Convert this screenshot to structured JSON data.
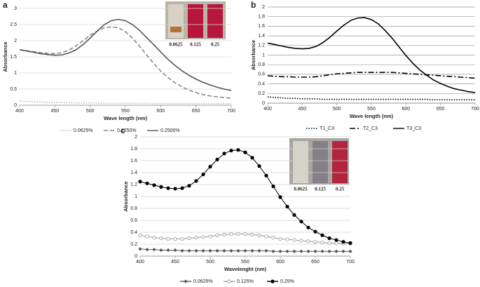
{
  "chart_data": [
    {
      "type": "line",
      "panel_label": "a",
      "x_label": "Wave length (nm)",
      "y_label": "Absorbance",
      "inset_labels": [
        "0.0625",
        "0.125",
        "0.25"
      ],
      "x": [
        400,
        410,
        420,
        430,
        440,
        450,
        460,
        470,
        480,
        490,
        500,
        510,
        520,
        530,
        540,
        550,
        560,
        570,
        580,
        590,
        600,
        610,
        620,
        630,
        640,
        650,
        660,
        670,
        680,
        690,
        700
      ],
      "xlim": [
        400,
        700
      ],
      "xticks": [
        400,
        450,
        500,
        550,
        600,
        650,
        700
      ],
      "ylim": [
        0,
        3
      ],
      "yticks": [
        0,
        0.5,
        1,
        1.5,
        2,
        2.5,
        3
      ],
      "grid": true,
      "series": [
        {
          "name": "0.0625%",
          "color": "#bbbbbb",
          "line_style": "dotted",
          "values": [
            0.13,
            0.12,
            0.11,
            0.1,
            0.09,
            0.09,
            0.08,
            0.08,
            0.07,
            0.07,
            0.07,
            0.07,
            0.06,
            0.06,
            0.06,
            0.06,
            0.06,
            0.06,
            0.06,
            0.05,
            0.05,
            0.05,
            0.05,
            0.05,
            0.05,
            0.05,
            0.05,
            0.05,
            0.05,
            0.05,
            0.05
          ]
        },
        {
          "name": "0.1250%",
          "color": "#888888",
          "line_style": "dashed",
          "values": [
            1.72,
            1.69,
            1.66,
            1.63,
            1.61,
            1.6,
            1.63,
            1.71,
            1.84,
            2.0,
            2.17,
            2.3,
            2.4,
            2.43,
            2.4,
            2.28,
            2.08,
            1.83,
            1.56,
            1.3,
            1.06,
            0.86,
            0.7,
            0.57,
            0.47,
            0.39,
            0.33,
            0.29,
            0.26,
            0.24,
            0.22
          ]
        },
        {
          "name": "0.2500%",
          "color": "#555555",
          "line_style": "solid",
          "values": [
            1.72,
            1.68,
            1.64,
            1.6,
            1.57,
            1.55,
            1.56,
            1.62,
            1.72,
            1.88,
            2.08,
            2.3,
            2.5,
            2.62,
            2.66,
            2.62,
            2.5,
            2.32,
            2.1,
            1.88,
            1.65,
            1.43,
            1.24,
            1.07,
            0.93,
            0.81,
            0.71,
            0.63,
            0.56,
            0.5,
            0.46
          ]
        }
      ]
    },
    {
      "type": "line",
      "panel_label": "b",
      "x_label": "Wave length (nm)",
      "y_label": "Absorbance",
      "x": [
        400,
        410,
        420,
        430,
        440,
        450,
        460,
        470,
        480,
        490,
        500,
        510,
        520,
        530,
        540,
        550,
        560,
        570,
        580,
        590,
        600,
        610,
        620,
        630,
        640,
        650,
        660,
        670,
        680,
        690,
        700
      ],
      "xlim": [
        400,
        700
      ],
      "xticks": [
        400,
        450,
        500,
        550,
        600,
        650,
        700
      ],
      "ylim": [
        0,
        2
      ],
      "yticks": [
        0,
        0.2,
        0.4,
        0.6,
        0.8,
        1,
        1.2,
        1.4,
        1.6,
        1.8,
        2
      ],
      "grid": true,
      "series": [
        {
          "name": "T1_C3",
          "color": "#000000",
          "line_style": "dotted",
          "values": [
            0.13,
            0.12,
            0.11,
            0.1,
            0.1,
            0.09,
            0.09,
            0.09,
            0.08,
            0.08,
            0.08,
            0.08,
            0.08,
            0.08,
            0.08,
            0.08,
            0.08,
            0.08,
            0.08,
            0.08,
            0.08,
            0.08,
            0.08,
            0.08,
            0.07,
            0.07,
            0.07,
            0.07,
            0.07,
            0.07,
            0.07
          ]
        },
        {
          "name": "T2_C3",
          "color": "#000000",
          "line_style": "dashdot",
          "values": [
            0.57,
            0.56,
            0.55,
            0.55,
            0.54,
            0.54,
            0.54,
            0.55,
            0.57,
            0.59,
            0.61,
            0.62,
            0.63,
            0.64,
            0.64,
            0.64,
            0.64,
            0.64,
            0.64,
            0.63,
            0.62,
            0.61,
            0.6,
            0.59,
            0.58,
            0.57,
            0.56,
            0.55,
            0.54,
            0.53,
            0.52
          ]
        },
        {
          "name": "T3_C3",
          "color": "#000000",
          "line_style": "solid",
          "values": [
            1.25,
            1.22,
            1.19,
            1.16,
            1.14,
            1.13,
            1.14,
            1.18,
            1.26,
            1.37,
            1.5,
            1.62,
            1.72,
            1.77,
            1.78,
            1.74,
            1.65,
            1.51,
            1.35,
            1.17,
            0.99,
            0.83,
            0.69,
            0.58,
            0.48,
            0.41,
            0.35,
            0.3,
            0.27,
            0.24,
            0.22
          ]
        }
      ]
    },
    {
      "type": "line",
      "panel_label": "c",
      "x_label": "Wavelenght (nm)",
      "y_label": "Absorbance",
      "inset_labels": [
        "0.0625",
        "0.125",
        "0.25"
      ],
      "x": [
        400,
        410,
        420,
        430,
        440,
        450,
        460,
        470,
        480,
        490,
        500,
        510,
        520,
        530,
        540,
        550,
        560,
        570,
        580,
        590,
        600,
        610,
        620,
        630,
        640,
        650,
        660,
        670,
        680,
        690,
        700
      ],
      "xlim": [
        400,
        700
      ],
      "xticks": [
        400,
        450,
        500,
        550,
        600,
        650,
        700
      ],
      "ylim": [
        0,
        2
      ],
      "yticks": [
        0,
        0.2,
        0.4,
        0.6,
        0.8,
        1,
        1.2,
        1.4,
        1.6,
        1.8,
        2
      ],
      "grid": true,
      "series": [
        {
          "name": "0.0625%",
          "color": "#555555",
          "line_style": "solid",
          "marker": "diamond-filled",
          "values": [
            0.12,
            0.11,
            0.11,
            0.1,
            0.1,
            0.1,
            0.09,
            0.09,
            0.09,
            0.09,
            0.09,
            0.09,
            0.09,
            0.09,
            0.09,
            0.09,
            0.09,
            0.09,
            0.09,
            0.08,
            0.08,
            0.08,
            0.08,
            0.08,
            0.08,
            0.08,
            0.08,
            0.08,
            0.08,
            0.08,
            0.08
          ]
        },
        {
          "name": "0.125%",
          "color": "#999999",
          "line_style": "solid",
          "marker": "circle-open",
          "values": [
            0.35,
            0.33,
            0.31,
            0.3,
            0.29,
            0.29,
            0.29,
            0.3,
            0.31,
            0.32,
            0.33,
            0.35,
            0.36,
            0.37,
            0.37,
            0.37,
            0.36,
            0.35,
            0.33,
            0.31,
            0.29,
            0.28,
            0.27,
            0.26,
            0.25,
            0.24,
            0.23,
            0.22,
            0.22,
            0.21,
            0.21
          ]
        },
        {
          "name": "0.25%",
          "color": "#000000",
          "line_style": "solid",
          "marker": "circle-filled",
          "values": [
            1.25,
            1.22,
            1.19,
            1.16,
            1.14,
            1.13,
            1.14,
            1.18,
            1.26,
            1.37,
            1.5,
            1.62,
            1.72,
            1.77,
            1.78,
            1.74,
            1.65,
            1.51,
            1.35,
            1.17,
            0.99,
            0.83,
            0.69,
            0.58,
            0.48,
            0.41,
            0.35,
            0.3,
            0.27,
            0.24,
            0.22
          ]
        }
      ]
    }
  ]
}
